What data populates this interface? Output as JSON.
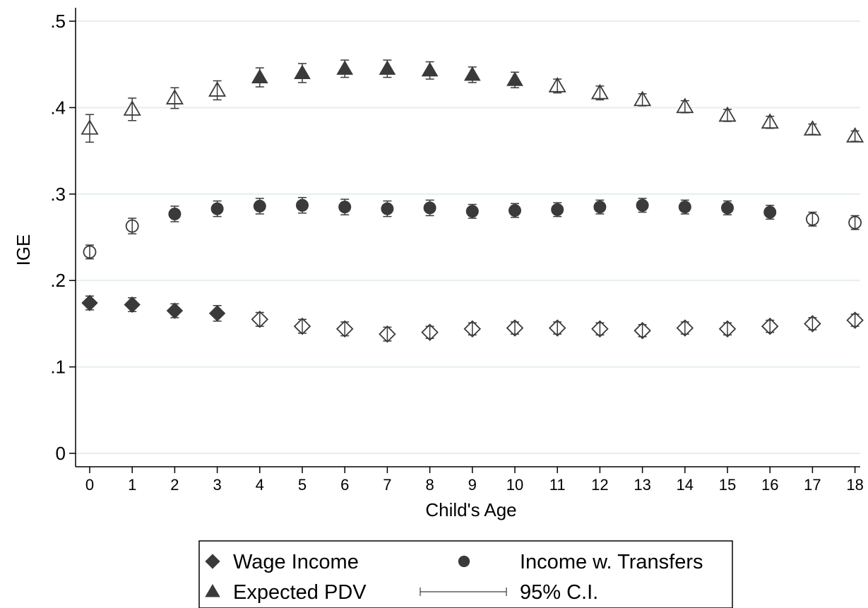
{
  "chart_data": {
    "type": "scatter",
    "title": "",
    "xlabel": "Child's Age",
    "ylabel": "IGE",
    "xlim": [
      0,
      18
    ],
    "ylim": [
      0,
      0.5
    ],
    "x": [
      0,
      1,
      2,
      3,
      4,
      5,
      6,
      7,
      8,
      9,
      10,
      11,
      12,
      13,
      14,
      15,
      16,
      17,
      18
    ],
    "x_tick_labels": [
      "0",
      "1",
      "2",
      "3",
      "4",
      "5",
      "6",
      "7",
      "8",
      "9",
      "10",
      "11",
      "12",
      "13",
      "14",
      "15",
      "16",
      "17",
      "18"
    ],
    "y_ticks": [
      0,
      0.1,
      0.2,
      0.3,
      0.4,
      0.5
    ],
    "y_tick_labels": [
      "0",
      ".1",
      ".2",
      ".3",
      ".4",
      ".5"
    ],
    "grid": true,
    "legend_position": "bottom",
    "series": [
      {
        "name": "Wage Income",
        "marker": "diamond",
        "values": [
          0.174,
          0.172,
          0.165,
          0.162,
          0.155,
          0.147,
          0.144,
          0.138,
          0.14,
          0.144,
          0.145,
          0.145,
          0.144,
          0.142,
          0.145,
          0.144,
          0.147,
          0.15,
          0.154
        ],
        "ci_low": [
          0.166,
          0.164,
          0.157,
          0.153,
          0.147,
          0.139,
          0.136,
          0.13,
          0.133,
          0.137,
          0.138,
          0.138,
          0.137,
          0.135,
          0.138,
          0.137,
          0.14,
          0.143,
          0.147
        ],
        "ci_high": [
          0.182,
          0.18,
          0.173,
          0.171,
          0.163,
          0.155,
          0.152,
          0.146,
          0.147,
          0.151,
          0.152,
          0.152,
          0.151,
          0.149,
          0.152,
          0.151,
          0.154,
          0.157,
          0.161
        ],
        "filled": [
          true,
          true,
          true,
          true,
          false,
          false,
          false,
          false,
          false,
          false,
          false,
          false,
          false,
          false,
          false,
          false,
          false,
          false,
          false
        ]
      },
      {
        "name": "Income w. Transfers",
        "marker": "circle",
        "values": [
          0.233,
          0.263,
          0.277,
          0.283,
          0.286,
          0.287,
          0.285,
          0.283,
          0.284,
          0.28,
          0.281,
          0.282,
          0.285,
          0.287,
          0.285,
          0.284,
          0.279,
          0.271,
          0.267
        ],
        "ci_low": [
          0.225,
          0.254,
          0.268,
          0.274,
          0.277,
          0.278,
          0.276,
          0.274,
          0.275,
          0.272,
          0.273,
          0.274,
          0.277,
          0.279,
          0.277,
          0.276,
          0.271,
          0.263,
          0.259
        ],
        "ci_high": [
          0.241,
          0.272,
          0.286,
          0.292,
          0.295,
          0.296,
          0.294,
          0.292,
          0.293,
          0.288,
          0.289,
          0.29,
          0.293,
          0.295,
          0.293,
          0.292,
          0.287,
          0.279,
          0.275
        ],
        "filled": [
          false,
          false,
          true,
          true,
          true,
          true,
          true,
          true,
          true,
          true,
          true,
          true,
          true,
          true,
          true,
          true,
          true,
          false,
          false
        ]
      },
      {
        "name": "Expected PDV",
        "marker": "triangle",
        "values": [
          0.376,
          0.398,
          0.411,
          0.42,
          0.435,
          0.44,
          0.445,
          0.445,
          0.443,
          0.438,
          0.432,
          0.425,
          0.417,
          0.409,
          0.401,
          0.391,
          0.383,
          0.375,
          0.367
        ],
        "ci_low": [
          0.36,
          0.385,
          0.399,
          0.409,
          0.424,
          0.429,
          0.435,
          0.435,
          0.433,
          0.429,
          0.423,
          0.417,
          0.409,
          0.402,
          0.394,
          0.384,
          0.376,
          0.369,
          0.361
        ],
        "ci_high": [
          0.392,
          0.411,
          0.423,
          0.431,
          0.446,
          0.451,
          0.455,
          0.455,
          0.453,
          0.447,
          0.441,
          0.433,
          0.425,
          0.416,
          0.408,
          0.398,
          0.39,
          0.381,
          0.373
        ],
        "filled": [
          false,
          false,
          false,
          false,
          true,
          true,
          true,
          true,
          true,
          true,
          true,
          false,
          false,
          false,
          false,
          false,
          false,
          false,
          false
        ]
      }
    ],
    "legend": [
      {
        "label": "Wage Income",
        "marker": "diamond"
      },
      {
        "label": "Income w. Transfers",
        "marker": "circle"
      },
      {
        "label": "Expected PDV",
        "marker": "triangle"
      },
      {
        "label": "95% C.I.",
        "marker": "capped-line"
      }
    ],
    "colors": {
      "marker": "#3a3a3a",
      "grid": "#e6eeee",
      "axis": "#000000"
    }
  }
}
